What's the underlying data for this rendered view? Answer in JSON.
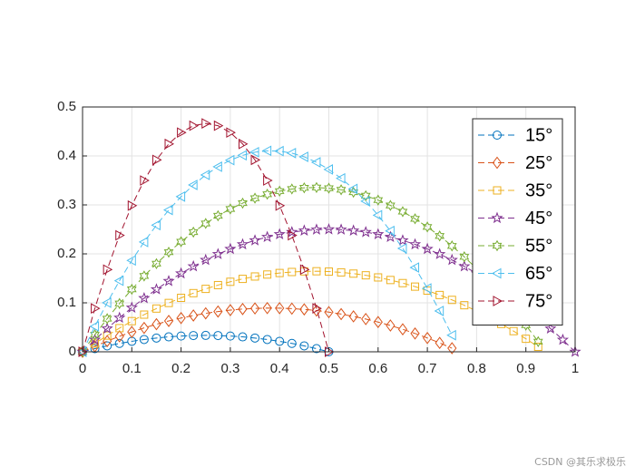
{
  "chart_data": {
    "type": "line",
    "x": [
      0,
      0.025,
      0.05,
      0.075,
      0.1,
      0.125,
      0.15,
      0.175,
      0.2,
      0.225,
      0.25,
      0.275,
      0.3,
      0.325,
      0.35,
      0.375,
      0.4,
      0.425,
      0.45,
      0.475,
      0.5,
      0.525,
      0.55,
      0.575,
      0.6,
      0.625,
      0.65,
      0.675,
      0.7,
      0.725,
      0.75,
      0.775,
      0.8,
      0.825,
      0.85,
      0.875,
      0.9,
      0.925,
      0.95,
      0.975,
      1
    ],
    "series": [
      {
        "name": "15°",
        "color": "#0072BD",
        "marker": "o",
        "values": [
          0,
          0.0064,
          0.0121,
          0.0171,
          0.0214,
          0.0251,
          0.0281,
          0.0305,
          0.0322,
          0.0332,
          0.0335,
          0.0332,
          0.0322,
          0.0305,
          0.0281,
          0.0251,
          0.0214,
          0.0171,
          0.0121,
          0.0064,
          0,
          null,
          null,
          null,
          null,
          null,
          null,
          null,
          null,
          null,
          null,
          null,
          null,
          null,
          null,
          null,
          null,
          null,
          null,
          null,
          null
        ]
      },
      {
        "name": "25°",
        "color": "#D95319",
        "marker": "d",
        "values": [
          0,
          0.0113,
          0.0218,
          0.0316,
          0.0405,
          0.0488,
          0.0563,
          0.063,
          0.0689,
          0.0741,
          0.0785,
          0.0822,
          0.0851,
          0.0873,
          0.0886,
          0.0893,
          0.0891,
          0.0882,
          0.0866,
          0.0842,
          0.081,
          0.077,
          0.0723,
          0.0669,
          0.0607,
          0.0537,
          0.0459,
          0.0374,
          0.0282,
          0.0181,
          0.0073,
          null,
          null,
          null,
          null,
          null,
          null,
          null,
          null,
          null,
          null
        ]
      },
      {
        "name": "35°",
        "color": "#EDB120",
        "marker": "s",
        "values": [
          0,
          0.017,
          0.0331,
          0.0483,
          0.0626,
          0.0759,
          0.0883,
          0.0997,
          0.1102,
          0.1198,
          0.1285,
          0.1362,
          0.143,
          0.1489,
          0.1538,
          0.1578,
          0.1609,
          0.163,
          0.1642,
          0.1645,
          0.1638,
          0.1622,
          0.1597,
          0.1562,
          0.1519,
          0.1466,
          0.1403,
          0.1331,
          0.125,
          0.116,
          0.106,
          0.0951,
          0.0833,
          0.0705,
          0.0568,
          0.0422,
          0.0266,
          0.0101,
          null,
          null,
          null
        ]
      },
      {
        "name": "45°",
        "color": "#7E2F8E",
        "marker": "p",
        "values": [
          0,
          0.0244,
          0.0475,
          0.0694,
          0.09,
          0.1094,
          0.1275,
          0.1444,
          0.16,
          0.1744,
          0.1875,
          0.1994,
          0.21,
          0.2194,
          0.2275,
          0.2344,
          0.24,
          0.2444,
          0.2475,
          0.2494,
          0.25,
          0.2494,
          0.2475,
          0.2444,
          0.24,
          0.2344,
          0.2275,
          0.2194,
          0.21,
          0.1994,
          0.1875,
          0.1744,
          0.16,
          0.1444,
          0.1275,
          0.1094,
          0.09,
          0.0694,
          0.0475,
          0.0244,
          0
        ]
      },
      {
        "name": "55°",
        "color": "#77AC30",
        "marker": "h",
        "values": [
          0,
          0.0348,
          0.0676,
          0.0986,
          0.1276,
          0.1548,
          0.18,
          0.2034,
          0.2248,
          0.2444,
          0.2621,
          0.2778,
          0.2917,
          0.3036,
          0.3137,
          0.3218,
          0.3281,
          0.3325,
          0.3349,
          0.3355,
          0.3341,
          0.3309,
          0.3258,
          0.3187,
          0.3098,
          0.2989,
          0.2862,
          0.2716,
          0.255,
          0.2366,
          0.2162,
          0.194,
          0.1698,
          0.1438,
          0.1159,
          0.086,
          0.0543,
          0.0207,
          null,
          null,
          null
        ]
      },
      {
        "name": "65°",
        "color": "#4DBEEE",
        "marker": "<",
        "values": [
          0,
          0.0519,
          0.1002,
          0.1451,
          0.1865,
          0.2243,
          0.2587,
          0.2896,
          0.3169,
          0.3408,
          0.3612,
          0.378,
          0.3914,
          0.4013,
          0.4077,
          0.4105,
          0.4099,
          0.4058,
          0.3982,
          0.387,
          0.3724,
          0.3543,
          0.3327,
          0.3076,
          0.279,
          0.2468,
          0.2112,
          0.1721,
          0.1295,
          0.0834,
          0.0338,
          null,
          null,
          null,
          null,
          null,
          null,
          null,
          null,
          null,
          null
        ]
      },
      {
        "name": "75°",
        "color": "#A2142F",
        "marker": ">",
        "values": [
          0,
          0.0886,
          0.1679,
          0.2379,
          0.2986,
          0.3499,
          0.3919,
          0.4245,
          0.4478,
          0.4618,
          0.4665,
          0.4618,
          0.4478,
          0.4245,
          0.3919,
          0.3499,
          0.2986,
          0.2379,
          0.1679,
          0.0886,
          0,
          null,
          null,
          null,
          null,
          null,
          null,
          null,
          null,
          null,
          null,
          null,
          null,
          null,
          null,
          null,
          null,
          null,
          null,
          null,
          null
        ]
      }
    ],
    "line_style": "dashed",
    "xlim": [
      0,
      1
    ],
    "ylim": [
      0,
      0.5
    ],
    "xticks": [
      0,
      0.1,
      0.2,
      0.3,
      0.4,
      0.5,
      0.6,
      0.7,
      0.8,
      0.9,
      1
    ],
    "yticks": [
      0,
      0.1,
      0.2,
      0.3,
      0.4,
      0.5
    ],
    "grid": true,
    "legend_position": "upper right",
    "watermark": "CSDN @其乐求极乐"
  }
}
